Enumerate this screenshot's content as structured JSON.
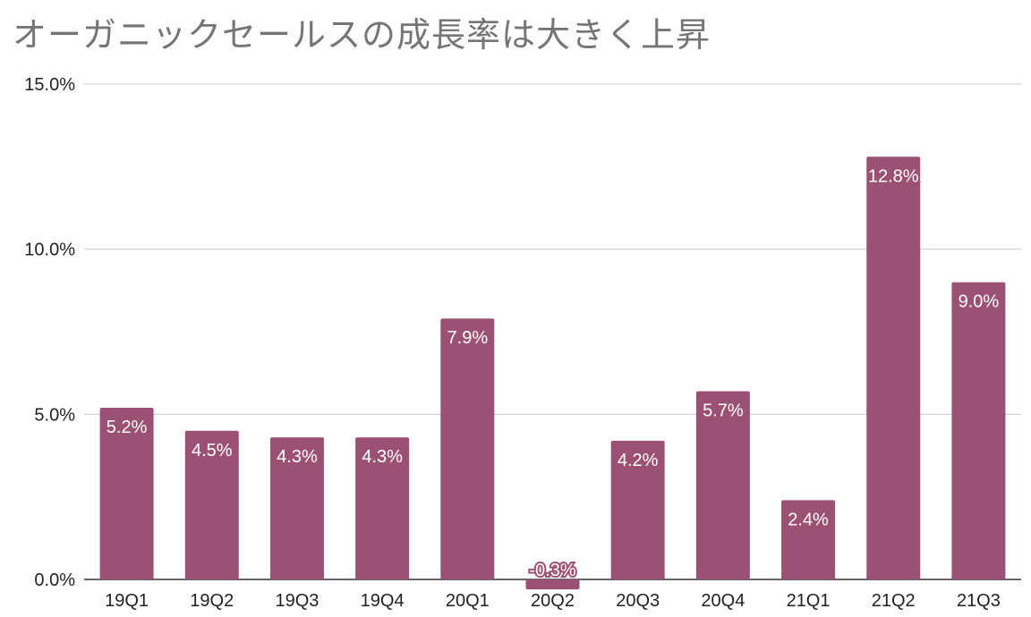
{
  "chart_data": {
    "type": "bar",
    "title": "オーガニックセールスの成長率は大きく上昇",
    "categories": [
      "19Q1",
      "19Q2",
      "19Q3",
      "19Q4",
      "20Q1",
      "20Q2",
      "20Q3",
      "20Q4",
      "21Q1",
      "21Q2",
      "21Q3"
    ],
    "values": [
      5.2,
      4.5,
      4.3,
      4.3,
      7.9,
      -0.3,
      4.2,
      5.7,
      2.4,
      12.8,
      9.0
    ],
    "data_labels": [
      "5.2%",
      "4.5%",
      "4.3%",
      "4.3%",
      "7.9%",
      "-0.3%",
      "4.2%",
      "5.7%",
      "2.4%",
      "12.8%",
      "9.0%"
    ],
    "ylim": [
      0,
      15
    ],
    "yticks": [
      0,
      5,
      10,
      15
    ],
    "ytick_labels": [
      "0.0%",
      "5.0%",
      "10.0%",
      "15.0%"
    ],
    "xlabel": "",
    "ylabel": "",
    "grid": true,
    "legend": "none",
    "bar_color": "#9a5174"
  }
}
